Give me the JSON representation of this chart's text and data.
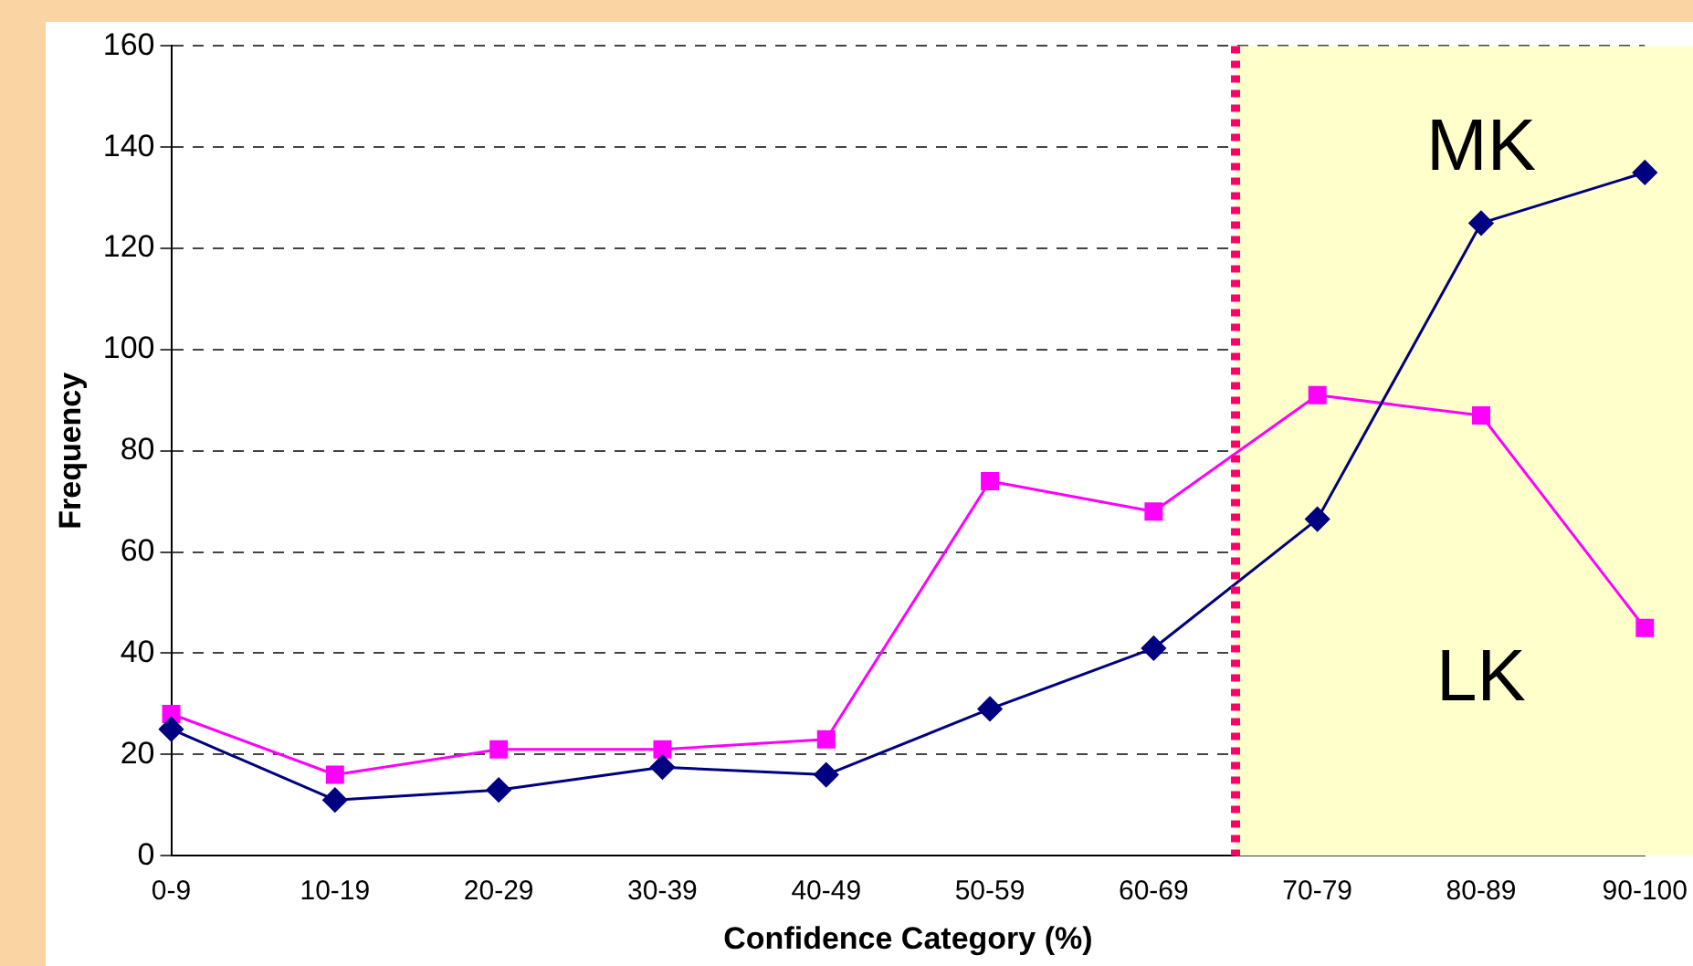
{
  "chart_data": {
    "type": "line",
    "xlabel": "Confidence Category (%)",
    "ylabel": "Frequency",
    "categories": [
      "0-9",
      "10-19",
      "20-29",
      "30-39",
      "40-49",
      "50-59",
      "60-69",
      "70-79",
      "80-89",
      "90-100"
    ],
    "series": [
      {
        "name": "MK",
        "color": "#000080",
        "marker": "diamond",
        "values": [
          25,
          11,
          13,
          17.5,
          16,
          29,
          41,
          66.5,
          125,
          135
        ]
      },
      {
        "name": "LK",
        "color": "#ff00ff",
        "marker": "square",
        "values": [
          28,
          16,
          21,
          21,
          23,
          74,
          68,
          91,
          87,
          45
        ]
      }
    ],
    "ylim": [
      0,
      160
    ],
    "yticks": [
      0,
      20,
      40,
      60,
      80,
      100,
      120,
      140,
      160
    ],
    "grid": "y",
    "legend": false,
    "bands": [
      {
        "axis": "x",
        "from": "70-79",
        "to": "90-100",
        "color": "#ffffcc"
      }
    ],
    "ref_lines": [
      {
        "axis": "x",
        "value": "70-79",
        "color": "#ff0066",
        "line_style": "dotted"
      }
    ]
  }
}
